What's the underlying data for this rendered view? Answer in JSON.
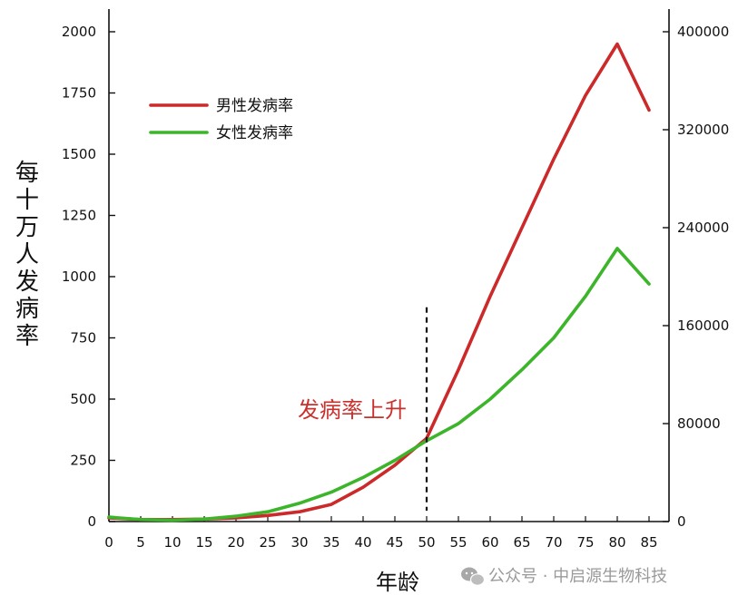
{
  "chart_data": {
    "type": "line",
    "xlabel": "年龄",
    "ylabel": "每十万人发病率",
    "x": [
      0,
      5,
      10,
      15,
      20,
      25,
      30,
      35,
      40,
      45,
      50,
      55,
      60,
      65,
      70,
      75,
      80,
      85
    ],
    "xlim": [
      0,
      88
    ],
    "ylim": [
      0,
      2000
    ],
    "y_ticks": [
      0,
      250,
      500,
      750,
      1000,
      1250,
      1500,
      1750,
      2000
    ],
    "y2lim": [
      0,
      400000
    ],
    "y2_ticks": [
      0,
      80000,
      160000,
      240000,
      320000,
      400000
    ],
    "series": [
      {
        "name": "男性发病率",
        "color": "#cc2a2a",
        "values": [
          15,
          8,
          8,
          10,
          15,
          25,
          40,
          70,
          140,
          230,
          340,
          620,
          920,
          1200,
          1480,
          1740,
          1950,
          1680
        ]
      },
      {
        "name": "女性发病率",
        "color": "#3cb52a",
        "values": [
          18,
          8,
          5,
          10,
          22,
          40,
          75,
          120,
          180,
          250,
          330,
          400,
          500,
          620,
          750,
          920,
          1115,
          970
        ]
      }
    ],
    "marker": {
      "x": 50,
      "y_top": 875,
      "label": "发病率上升",
      "label_color": "#c8312e"
    },
    "legend": "top-left"
  },
  "watermark": {
    "text": "公众号 · 中启源生物科技",
    "icon": "wechat-icon"
  }
}
